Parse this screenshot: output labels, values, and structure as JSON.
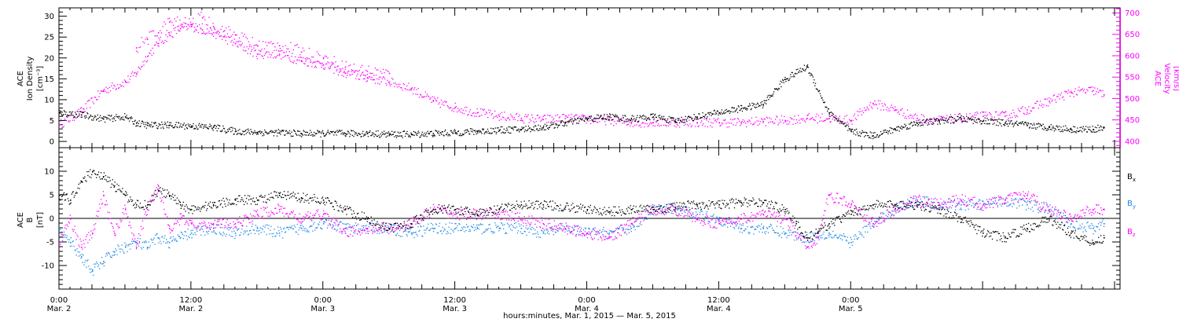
{
  "xaxis": {
    "ticks": [
      {
        "time": "0:00",
        "date": "Mar. 2"
      },
      {
        "time": "12:00",
        "date": "Mar. 2"
      },
      {
        "time": "0:00",
        "date": "Mar. 3"
      },
      {
        "time": "12:00",
        "date": "Mar. 3"
      },
      {
        "time": "0:00",
        "date": "Mar. 4"
      },
      {
        "time": "12:00",
        "date": "Mar. 4"
      },
      {
        "time": "0:00",
        "date": "Mar. 5"
      }
    ],
    "title": "hours:minutes, Mar.  1, 2015 — Mar.  5, 2015"
  },
  "colors": {
    "density": "#000000",
    "velocity": "#ff00ff",
    "bx": "#000000",
    "by": "#1e88e5",
    "bz": "#ff00ff",
    "frame": "#000000",
    "background": "#ffffff"
  },
  "chart_data": [
    {
      "type": "scatter",
      "panel": "top",
      "xlabel": "hours:minutes, Mar.  1, 2015 — Mar.  5, 2015",
      "x_unit": "hours from Mar. 2 0:00",
      "xlim": [
        0,
        96.5
      ],
      "left_axis": {
        "label_lines": [
          "ACE",
          "Ion Density",
          "[cm⁻³]"
        ],
        "ylim": [
          -1.5,
          32
        ],
        "ticks": [
          "0",
          "5",
          "10",
          "15",
          "20",
          "25",
          "30"
        ]
      },
      "right_axis": {
        "label_lines": [
          "ACE",
          "Velocity",
          "[km/s]"
        ],
        "ylim": [
          385,
          712
        ],
        "ticks": [
          "400",
          "450",
          "500",
          "550",
          "600",
          "650",
          "700"
        ]
      },
      "series": [
        {
          "key": "density",
          "axis": "left",
          "x": [
            0,
            2,
            4,
            6,
            7,
            8,
            10,
            12,
            14,
            16,
            18,
            20,
            22,
            24,
            26,
            28,
            30,
            32,
            34,
            36,
            38,
            40,
            42,
            44,
            46,
            48,
            50,
            52,
            54,
            56,
            58,
            60,
            62,
            64,
            66,
            68,
            70,
            72,
            74,
            76,
            78,
            80,
            82,
            84,
            86,
            88,
            90,
            92,
            94,
            95
          ],
          "y": [
            7,
            6.5,
            5.5,
            6,
            4.5,
            4,
            4,
            3.8,
            3.5,
            2.5,
            2.3,
            2.2,
            2,
            2,
            2,
            2,
            1.8,
            1.8,
            2,
            2.2,
            2.5,
            2.8,
            3,
            3.5,
            4.5,
            5.5,
            6,
            5.5,
            6,
            5,
            6,
            7,
            8,
            9,
            15,
            18,
            7,
            2.5,
            1.5,
            3,
            4.5,
            5,
            5.5,
            5,
            4.5,
            4,
            3.5,
            3,
            3,
            3.5
          ]
        },
        {
          "key": "velocity",
          "axis": "right",
          "x": [
            0,
            2,
            4,
            6,
            7,
            8,
            9,
            10,
            11,
            12,
            13,
            14,
            16,
            18,
            20,
            22,
            24,
            26,
            28,
            30,
            32,
            34,
            36,
            38,
            40,
            42,
            44,
            46,
            48,
            50,
            52,
            54,
            56,
            58,
            60,
            62,
            64,
            66,
            68,
            70,
            72,
            74,
            76,
            78,
            80,
            82,
            84,
            86,
            88,
            90,
            92,
            94,
            95
          ],
          "y": [
            440,
            470,
            520,
            540,
            560,
            600,
            630,
            650,
            665,
            670,
            662,
            655,
            630,
            605,
            605,
            590,
            580,
            560,
            550,
            540,
            525,
            495,
            480,
            468,
            460,
            455,
            452,
            455,
            452,
            450,
            445,
            445,
            445,
            445,
            445,
            445,
            448,
            450,
            455,
            455,
            450,
            490,
            475,
            455,
            450,
            455,
            460,
            460,
            475,
            495,
            515,
            520,
            510
          ]
        },
        {
          "key": "velocity_scatter_upper",
          "axis": "right",
          "x": [
            7,
            8,
            9,
            10,
            12,
            13,
            14,
            15,
            16,
            18,
            20,
            22,
            24,
            26,
            28,
            30
          ],
          "y": [
            620,
            640,
            655,
            680,
            675,
            690,
            670,
            660,
            650,
            625,
            625,
            610,
            595,
            575,
            565,
            560
          ]
        }
      ]
    },
    {
      "type": "scatter",
      "panel": "bottom",
      "xlabel": "hours:minutes, Mar.  1, 2015 — Mar.  5, 2015",
      "x_unit": "hours from Mar. 2 0:00",
      "xlim": [
        0,
        96.5
      ],
      "ylabel_lines": [
        "ACE",
        "B",
        "[nT]"
      ],
      "ylim": [
        -15,
        15
      ],
      "yticks": [
        "-10",
        "-5",
        "0",
        "5",
        "10"
      ],
      "zero_line": true,
      "series": [
        {
          "key": "bx",
          "name": "B",
          "subscript": "x",
          "x": [
            0,
            1,
            2,
            3,
            4,
            5,
            6,
            7,
            8,
            9,
            10,
            11,
            12,
            14,
            16,
            18,
            20,
            22,
            24,
            26,
            28,
            30,
            32,
            34,
            36,
            38,
            40,
            42,
            44,
            46,
            48,
            50,
            52,
            54,
            56,
            58,
            60,
            62,
            64,
            66,
            67,
            68,
            69,
            70,
            72,
            74,
            76,
            78,
            80,
            82,
            84,
            86,
            88,
            90,
            92,
            94,
            95
          ],
          "y": [
            5,
            4,
            8,
            10,
            9,
            7,
            5,
            3,
            3,
            6,
            5,
            3,
            2,
            3,
            4,
            4,
            5,
            4.5,
            4,
            2,
            0,
            -2,
            -1,
            2,
            2,
            1,
            2,
            3,
            3,
            2.5,
            2,
            1.5,
            2,
            2,
            2.5,
            3,
            3,
            3.5,
            3.5,
            2,
            -1,
            -4,
            -3,
            -1,
            1,
            3,
            3,
            3,
            2,
            0,
            -3,
            -4,
            -2,
            0,
            -3,
            -5,
            -4
          ]
        },
        {
          "key": "by",
          "name": "B",
          "subscript": "y",
          "x": [
            0,
            1,
            2,
            3,
            4,
            5,
            6,
            7,
            8,
            9,
            10,
            11,
            12,
            14,
            16,
            18,
            20,
            22,
            24,
            26,
            28,
            30,
            32,
            34,
            36,
            38,
            40,
            42,
            44,
            46,
            48,
            50,
            52,
            54,
            56,
            58,
            60,
            62,
            64,
            66,
            68,
            70,
            72,
            74,
            76,
            78,
            80,
            82,
            84,
            86,
            88,
            90,
            92,
            94,
            95
          ],
          "y": [
            -3,
            -5,
            -8,
            -11,
            -9,
            -7,
            -6,
            -5,
            -6,
            -4,
            -5,
            -4,
            -3,
            -2,
            -3,
            -2,
            -3,
            -2,
            -1,
            -2,
            -2,
            -2,
            -3,
            -2,
            -2,
            -2,
            -2,
            -2,
            -3,
            -2,
            -3,
            -3,
            -2,
            2,
            2,
            1,
            0,
            -2,
            -2,
            -3,
            -4,
            -3,
            -5,
            -1,
            2,
            4,
            3,
            3,
            3,
            4,
            3,
            2,
            -1,
            -2,
            -1
          ]
        },
        {
          "key": "bz",
          "name": "B",
          "subscript": "z",
          "x": [
            0,
            1,
            2,
            3,
            4,
            5,
            6,
            7,
            8,
            9,
            10,
            11,
            12,
            14,
            16,
            18,
            20,
            22,
            24,
            26,
            28,
            30,
            32,
            34,
            36,
            38,
            40,
            42,
            44,
            46,
            48,
            50,
            52,
            54,
            56,
            58,
            60,
            62,
            64,
            66,
            68,
            69,
            70,
            72,
            74,
            76,
            78,
            80,
            82,
            84,
            86,
            88,
            90,
            92,
            94,
            95
          ],
          "y": [
            -5,
            0,
            -6,
            -3,
            5,
            -3,
            2,
            -6,
            2,
            7,
            -2,
            0,
            -1,
            -1,
            -1,
            1,
            2,
            0,
            1,
            -3,
            -2,
            -2,
            -1,
            2,
            1,
            1,
            1,
            0,
            -1,
            -2,
            -3,
            -4,
            -1,
            2,
            2,
            0,
            -1,
            0,
            1,
            0,
            -6,
            -4,
            5,
            3,
            -1,
            2,
            4,
            3,
            4,
            3,
            4,
            5,
            2,
            0,
            2,
            2
          ]
        }
      ],
      "legend_placement": "right"
    }
  ]
}
